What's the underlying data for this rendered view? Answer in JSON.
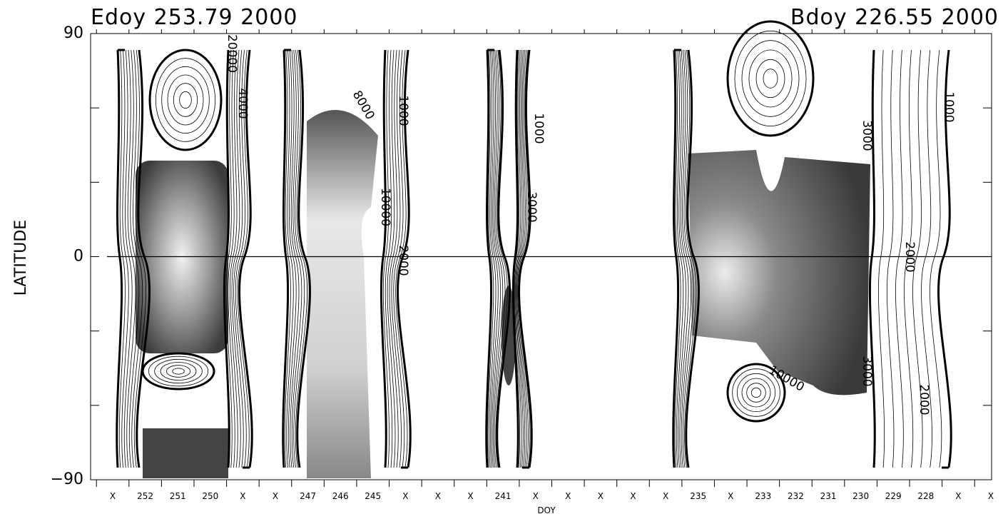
{
  "chart_data": {
    "type": "contour",
    "title_left": "Edoy 253.79 2000",
    "title_right": "Bdoy 226.55 2000",
    "ylabel": "LATITUDE",
    "xlabel": "DOY",
    "categories": [
      "X",
      "252",
      "251",
      "250",
      "X",
      "X",
      "247",
      "246",
      "245",
      "X",
      "X",
      "X",
      "241",
      "X",
      "X",
      "X",
      "X",
      "X",
      "235",
      "X",
      "233",
      "232",
      "231",
      "230",
      "229",
      "228",
      "X",
      "X"
    ],
    "ylim": [
      -90,
      90
    ],
    "yticks": [
      {
        "value": 90,
        "label": "90"
      },
      0,
      {
        "value": -90,
        "label": "−90"
      }
    ],
    "yminorticks": [
      60,
      30,
      -30,
      -60
    ],
    "zero_line": true,
    "contour_labels": [
      "1000",
      "2000",
      "3000",
      "4000",
      "8000",
      "10000",
      "20000",
      "1000",
      "2000",
      "3000",
      "10000",
      "1000",
      "3000",
      "2000"
    ]
  }
}
